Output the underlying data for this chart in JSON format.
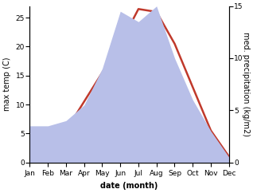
{
  "months": [
    "Jan",
    "Feb",
    "Mar",
    "Apr",
    "May",
    "Jun",
    "Jul",
    "Aug",
    "Sep",
    "Oct",
    "Nov",
    "Dec"
  ],
  "month_x": [
    1,
    2,
    3,
    4,
    5,
    6,
    7,
    8,
    9,
    10,
    11,
    12
  ],
  "temperature": [
    0.5,
    1.5,
    5.5,
    10.5,
    15.5,
    20.5,
    26.5,
    26.0,
    20.5,
    13.0,
    5.5,
    1.0
  ],
  "precipitation": [
    3.5,
    3.5,
    4.0,
    5.5,
    9.0,
    14.5,
    13.5,
    15.0,
    10.0,
    6.0,
    3.0,
    0.5
  ],
  "temp_color": "#c0392b",
  "precip_color": "#b8bfe8",
  "temp_ylim": [
    0,
    27
  ],
  "precip_ylim": [
    0,
    15
  ],
  "temp_yticks": [
    0,
    5,
    10,
    15,
    20,
    25
  ],
  "precip_yticks": [
    0,
    5,
    10,
    15
  ],
  "xlabel": "date (month)",
  "ylabel_left": "max temp (C)",
  "ylabel_right": "med. precipitation (kg/m2)",
  "label_fontsize": 7,
  "tick_fontsize": 6.5,
  "line_width": 1.8,
  "background_color": "#ffffff"
}
